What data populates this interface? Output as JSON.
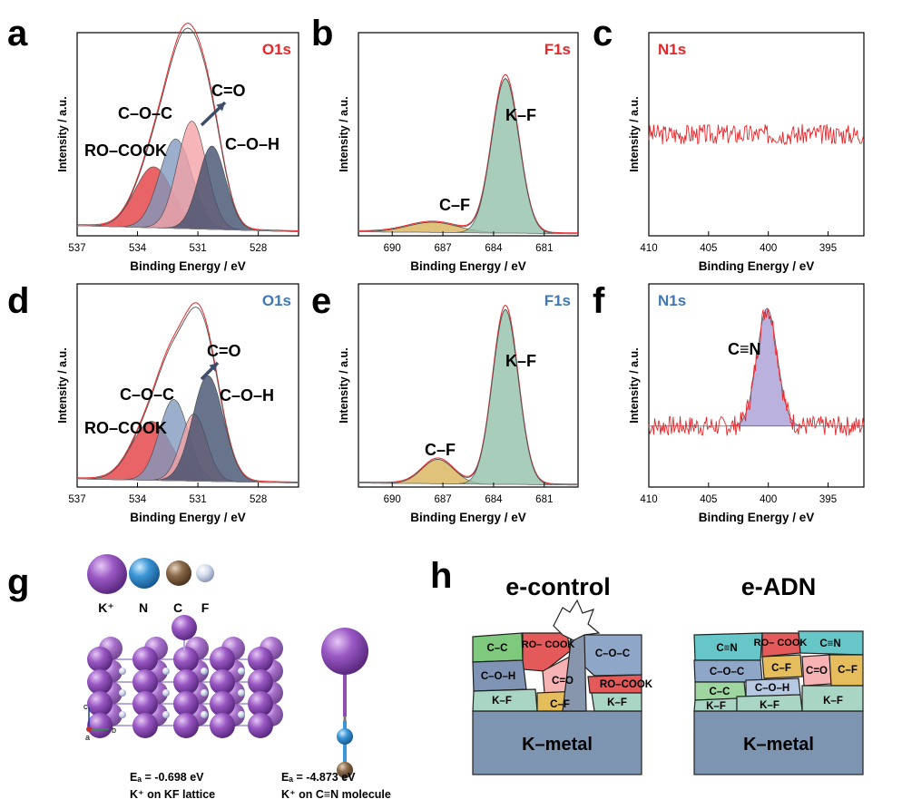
{
  "panel_letters": {
    "a": "a",
    "b": "b",
    "c": "c",
    "d": "d",
    "e": "e",
    "f": "f",
    "g": "g",
    "h": "h"
  },
  "colors": {
    "red_title": "#e8262a",
    "blue_title": "#3f78b4",
    "red_fill": "#e3383c",
    "pink_fill": "#f3a1a5",
    "blue_fill": "#7f99bf",
    "navy_fill": "#3e4d6b",
    "teal_fill": "#8fbfa8",
    "gold_fill": "#d9b154",
    "purple_fill": "#a79bd6",
    "fit_red": "#e8262a"
  },
  "chart_data": [
    {
      "id": "a",
      "type": "area",
      "title": "O1s",
      "title_color": "red",
      "ylabel": "Intensity / a.u.",
      "xlabel": "Binding Energy / eV",
      "xlim": [
        537,
        526
      ],
      "xticks": [
        537,
        534,
        531,
        528
      ],
      "y_ticks_shown": false,
      "peaks": [
        {
          "label": "RO–COOK",
          "center": 533.2,
          "height": 0.3,
          "fwhm": 2.2,
          "color": "red_fill"
        },
        {
          "label": "C–O–C",
          "center": 532.1,
          "height": 0.44,
          "fwhm": 1.9,
          "color": "blue_fill"
        },
        {
          "label": "C=O",
          "center": 531.3,
          "height": 0.53,
          "fwhm": 1.7,
          "color": "pink_fill"
        },
        {
          "label": "C–O–H",
          "center": 530.3,
          "height": 0.41,
          "fwhm": 1.6,
          "color": "navy_fill"
        }
      ],
      "background": {
        "left": 0.05,
        "right": 0.02
      },
      "annotations": [
        {
          "text": "RO–COOK"
        },
        {
          "text": "C–O–C"
        },
        {
          "text": "C=O"
        },
        {
          "text": "C–O–H"
        }
      ],
      "arrow": true
    },
    {
      "id": "b",
      "type": "area",
      "title": "F1s",
      "title_color": "red",
      "ylabel": "Intensity / a.u.",
      "xlabel": "Binding Energy / eV",
      "xlim": [
        692,
        679
      ],
      "xticks": [
        690,
        687,
        684,
        681
      ],
      "y_ticks_shown": false,
      "peaks": [
        {
          "label": "C–F",
          "center": 687.6,
          "height": 0.05,
          "fwhm": 3.5,
          "color": "gold_fill"
        },
        {
          "label": "K–F",
          "center": 683.3,
          "height": 0.76,
          "fwhm": 1.9,
          "color": "teal_fill"
        }
      ],
      "background": {
        "left": 0.02,
        "right": 0.01
      },
      "annotations": [
        {
          "text": "K–F"
        },
        {
          "text": "C–F"
        }
      ]
    },
    {
      "id": "c",
      "type": "line",
      "title": "N1s",
      "title_color": "red",
      "ylabel": "Intensity / a.u.",
      "xlabel": "Binding Energy / eV",
      "xlim": [
        410,
        392
      ],
      "xticks": [
        410,
        405,
        400,
        395
      ],
      "y_ticks_shown": false,
      "noise": {
        "baseline": 0.5,
        "amplitude": 0.05,
        "seed": 3
      }
    },
    {
      "id": "d",
      "type": "area",
      "title": "O1s",
      "title_color": "blue",
      "ylabel": "Intensity / a.u.",
      "xlabel": "Binding Energy / eV",
      "xlim": [
        537,
        526
      ],
      "xticks": [
        537,
        534,
        531,
        528
      ],
      "y_ticks_shown": false,
      "peaks": [
        {
          "label": "RO–COOK",
          "center": 533.3,
          "height": 0.29,
          "fwhm": 2.3,
          "color": "red_fill"
        },
        {
          "label": "C–O–C",
          "center": 532.2,
          "height": 0.4,
          "fwhm": 1.7,
          "color": "blue_fill"
        },
        {
          "label": "C=O",
          "center": 531.2,
          "height": 0.33,
          "fwhm": 1.5,
          "color": "pink_fill"
        },
        {
          "label": "C–O–H",
          "center": 530.5,
          "height": 0.52,
          "fwhm": 1.8,
          "color": "navy_fill"
        }
      ],
      "background": {
        "left": 0.04,
        "right": 0.02
      },
      "annotations": [
        {
          "text": "RO–COOK"
        },
        {
          "text": "C–O–C"
        },
        {
          "text": "C=O"
        },
        {
          "text": "C–O–H"
        }
      ],
      "arrow": true
    },
    {
      "id": "e",
      "type": "area",
      "title": "F1s",
      "title_color": "blue",
      "ylabel": "Intensity / a.u.",
      "xlabel": "Binding Energy / eV",
      "xlim": [
        692,
        679
      ],
      "xticks": [
        690,
        687,
        684,
        681
      ],
      "y_ticks_shown": false,
      "peaks": [
        {
          "label": "C–F",
          "center": 687.3,
          "height": 0.12,
          "fwhm": 2.2,
          "color": "gold_fill"
        },
        {
          "label": "K–F",
          "center": 683.3,
          "height": 0.86,
          "fwhm": 1.8,
          "color": "teal_fill"
        }
      ],
      "background": {
        "left": 0.02,
        "right": 0.01
      },
      "annotations": [
        {
          "text": "K–F"
        },
        {
          "text": "C–F"
        }
      ]
    },
    {
      "id": "f",
      "type": "area",
      "title": "N1s",
      "title_color": "blue",
      "ylabel": "Intensity / a.u.",
      "xlabel": "Binding Energy / eV",
      "xlim": [
        410,
        392
      ],
      "xticks": [
        410,
        405,
        400,
        395
      ],
      "y_ticks_shown": false,
      "noise": {
        "baseline": 0.3,
        "amplitude": 0.05,
        "seed": 7
      },
      "peaks": [
        {
          "label": "C≡N",
          "center": 400.1,
          "height": 0.58,
          "fwhm": 2.0,
          "color": "purple_fill"
        }
      ],
      "annotations": [
        {
          "text": "C≡N"
        }
      ]
    }
  ],
  "panel_g": {
    "legend": [
      {
        "symbol": "K⁺",
        "color": "#8e4fb5"
      },
      {
        "symbol": "N",
        "color": "#3a96d6"
      },
      {
        "symbol": "C",
        "color": "#8a6a4a"
      },
      {
        "symbol": "F",
        "color": "#c9d3e8"
      }
    ],
    "axis_labels": {
      "c": "c",
      "b": "b",
      "a": "a"
    },
    "captions": [
      {
        "energy": "Eₐ = -0.698 eV",
        "desc": "K⁺ on KF lattice"
      },
      {
        "energy": "Eₐ = -4.873 eV",
        "desc": "K⁺ on C≡N molecule"
      }
    ]
  },
  "panel_h": {
    "left_title": "e-control",
    "right_title": "e-ADN",
    "metal_label": "K–metal",
    "left_blocks": [
      "C–C",
      "RO–\nCOOK",
      "C–O–C",
      "C–O–H",
      "C=O",
      "RO–COOK",
      "K–F",
      "C–F",
      "K–F"
    ],
    "right_blocks": [
      "C≡N",
      "RO–\nCOOK",
      "C≡N",
      "C–O–C",
      "C–F",
      "C=O",
      "C–F",
      "C–C",
      "C–O–H",
      "K–F",
      "K–F",
      "K–F"
    ]
  }
}
